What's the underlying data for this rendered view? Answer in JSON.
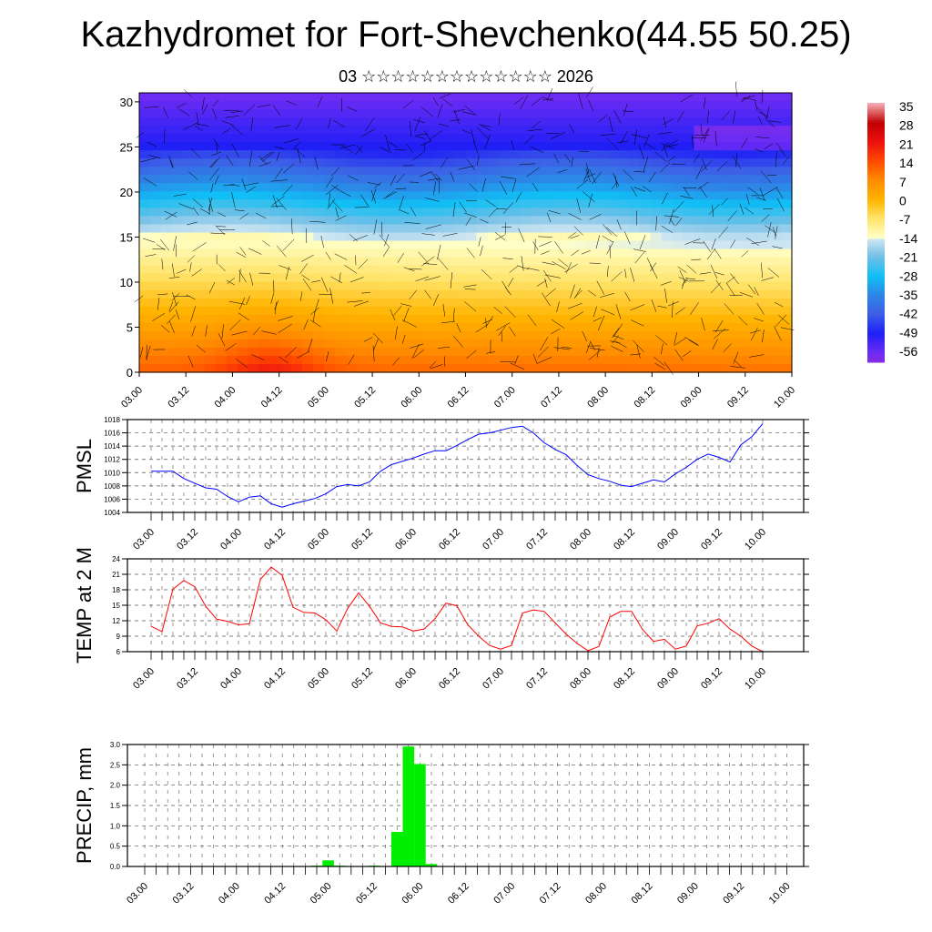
{
  "title": "Kazhydromet for Fort-Shevchenko(44.55 50.25)",
  "subtitle": "03 ☆☆☆☆☆☆☆☆☆☆☆☆☆ 2026",
  "chart_data": [
    {
      "type": "heatmap",
      "name": "temperature-wind-cross-section",
      "ylim": [
        0,
        31
      ],
      "yticks": [
        "0",
        "5",
        "10",
        "15",
        "20",
        "25",
        "30"
      ],
      "xticks": [
        "03.00",
        "03.12",
        "04.00",
        "04.12",
        "05.00",
        "05.12",
        "06.00",
        "06.12",
        "07.00",
        "07.12",
        "08.00",
        "08.12",
        "09.00",
        "09.12",
        "10.00"
      ],
      "colorbar": {
        "labels": [
          "35",
          "28",
          "21",
          "14",
          "7",
          "0",
          "-7",
          "-14",
          "-21",
          "-28",
          "-35",
          "-42",
          "-49",
          "-56"
        ],
        "stops": [
          {
            "v": -60,
            "c": "#8a2be2"
          },
          {
            "v": -56,
            "c": "#6a2cf4"
          },
          {
            "v": -49,
            "c": "#1f1ff5"
          },
          {
            "v": -42,
            "c": "#3d5ee6"
          },
          {
            "v": -35,
            "c": "#2d86e6"
          },
          {
            "v": -28,
            "c": "#10c0f5"
          },
          {
            "v": -21,
            "c": "#72bfe6"
          },
          {
            "v": -14.5,
            "c": "#cfe6f2"
          },
          {
            "v": -14,
            "c": "#ffffc8"
          },
          {
            "v": -7,
            "c": "#ffe46a"
          },
          {
            "v": 0,
            "c": "#ffb400"
          },
          {
            "v": 7,
            "c": "#ff8c00"
          },
          {
            "v": 14,
            "c": "#ff4a00"
          },
          {
            "v": 21,
            "c": "#ee1010"
          },
          {
            "v": 28,
            "c": "#c00000"
          },
          {
            "v": 35,
            "c": "#f4a8b0"
          }
        ]
      }
    },
    {
      "type": "line",
      "name": "pmsl",
      "ylabel": "PMSL",
      "ylim": [
        1004,
        1018
      ],
      "yticks": [
        "1004",
        "1006",
        "1008",
        "1010",
        "1012",
        "1014",
        "1016",
        "1018"
      ],
      "xticks": [
        "03.00",
        "03.12",
        "04.00",
        "04.12",
        "05.00",
        "05.12",
        "06.00",
        "06.12",
        "07.00",
        "07.12",
        "08.00",
        "08.12",
        "09.00",
        "09.12",
        "10.00"
      ],
      "color": "#0000ff",
      "values": [
        1010.2,
        1010.2,
        1010.2,
        1009.1,
        1008.4,
        1007.7,
        1007.5,
        1006.4,
        1005.6,
        1006.3,
        1006.5,
        1005.3,
        1004.8,
        1005.3,
        1005.7,
        1006.1,
        1006.8,
        1007.9,
        1008.2,
        1008.0,
        1008.6,
        1010.2,
        1011.2,
        1011.7,
        1012.2,
        1012.8,
        1013.3,
        1013.3,
        1014.1,
        1015.0,
        1015.8,
        1016.0,
        1016.4,
        1016.8,
        1017.0,
        1016.0,
        1014.5,
        1013.5,
        1012.7,
        1011.1,
        1009.7,
        1009.1,
        1008.7,
        1008.1,
        1007.9,
        1008.4,
        1008.9,
        1008.6,
        1009.8,
        1010.8,
        1012.0,
        1012.8,
        1012.3,
        1011.6,
        1014.2,
        1015.4,
        1017.4
      ]
    },
    {
      "type": "line",
      "name": "temp-2m",
      "ylabel": "TEMP at 2 M",
      "ylim": [
        6,
        24
      ],
      "yticks": [
        "6",
        "9",
        "12",
        "15",
        "18",
        "21",
        "24"
      ],
      "xticks": [
        "03.00",
        "03.12",
        "04.00",
        "04.12",
        "05.00",
        "05.12",
        "06.00",
        "06.12",
        "07.00",
        "07.12",
        "08.00",
        "08.12",
        "09.00",
        "09.12",
        "10.00"
      ],
      "color": "#ff0000",
      "values": [
        10.9,
        9.9,
        18.1,
        19.8,
        18.6,
        14.8,
        12.3,
        11.9,
        11.2,
        11.4,
        20.0,
        22.4,
        20.8,
        14.6,
        13.6,
        13.5,
        12.2,
        10.0,
        14.4,
        17.4,
        14.8,
        11.6,
        10.9,
        10.8,
        10.0,
        10.4,
        12.4,
        15.4,
        14.9,
        11.2,
        9.0,
        7.2,
        6.5,
        7.2,
        13.5,
        14.1,
        13.8,
        11.6,
        9.4,
        7.6,
        6.2,
        7.0,
        12.7,
        13.8,
        13.8,
        10.3,
        8.0,
        8.4,
        6.5,
        7.1,
        11.0,
        11.5,
        12.4,
        10.4,
        9.0,
        7.1,
        6.0
      ]
    },
    {
      "type": "bar",
      "name": "precip",
      "ylabel": "PRECIP, mm",
      "ylim": [
        0,
        3
      ],
      "yticks": [
        "0.0",
        "0.5",
        "1.0",
        "1.5",
        "2.0",
        "2.5",
        "3.0"
      ],
      "xticks": [
        "03.00",
        "03.12",
        "04.00",
        "04.12",
        "05.00",
        "05.12",
        "06.00",
        "06.12",
        "07.00",
        "07.12",
        "08.00",
        "08.12",
        "09.00",
        "09.12",
        "10.00"
      ],
      "color": "#00ee00",
      "values": [
        0,
        0,
        0,
        0,
        0,
        0,
        0,
        0,
        0,
        0,
        0,
        0,
        0,
        0,
        0,
        0.02,
        0.15,
        0.02,
        0,
        0,
        0.02,
        0,
        0.85,
        2.95,
        2.52,
        0.06,
        0,
        0,
        0,
        0,
        0,
        0,
        0,
        0,
        0,
        0,
        0,
        0,
        0,
        0,
        0,
        0,
        0,
        0,
        0,
        0,
        0,
        0,
        0,
        0,
        0,
        0,
        0,
        0,
        0,
        0,
        0
      ]
    }
  ]
}
